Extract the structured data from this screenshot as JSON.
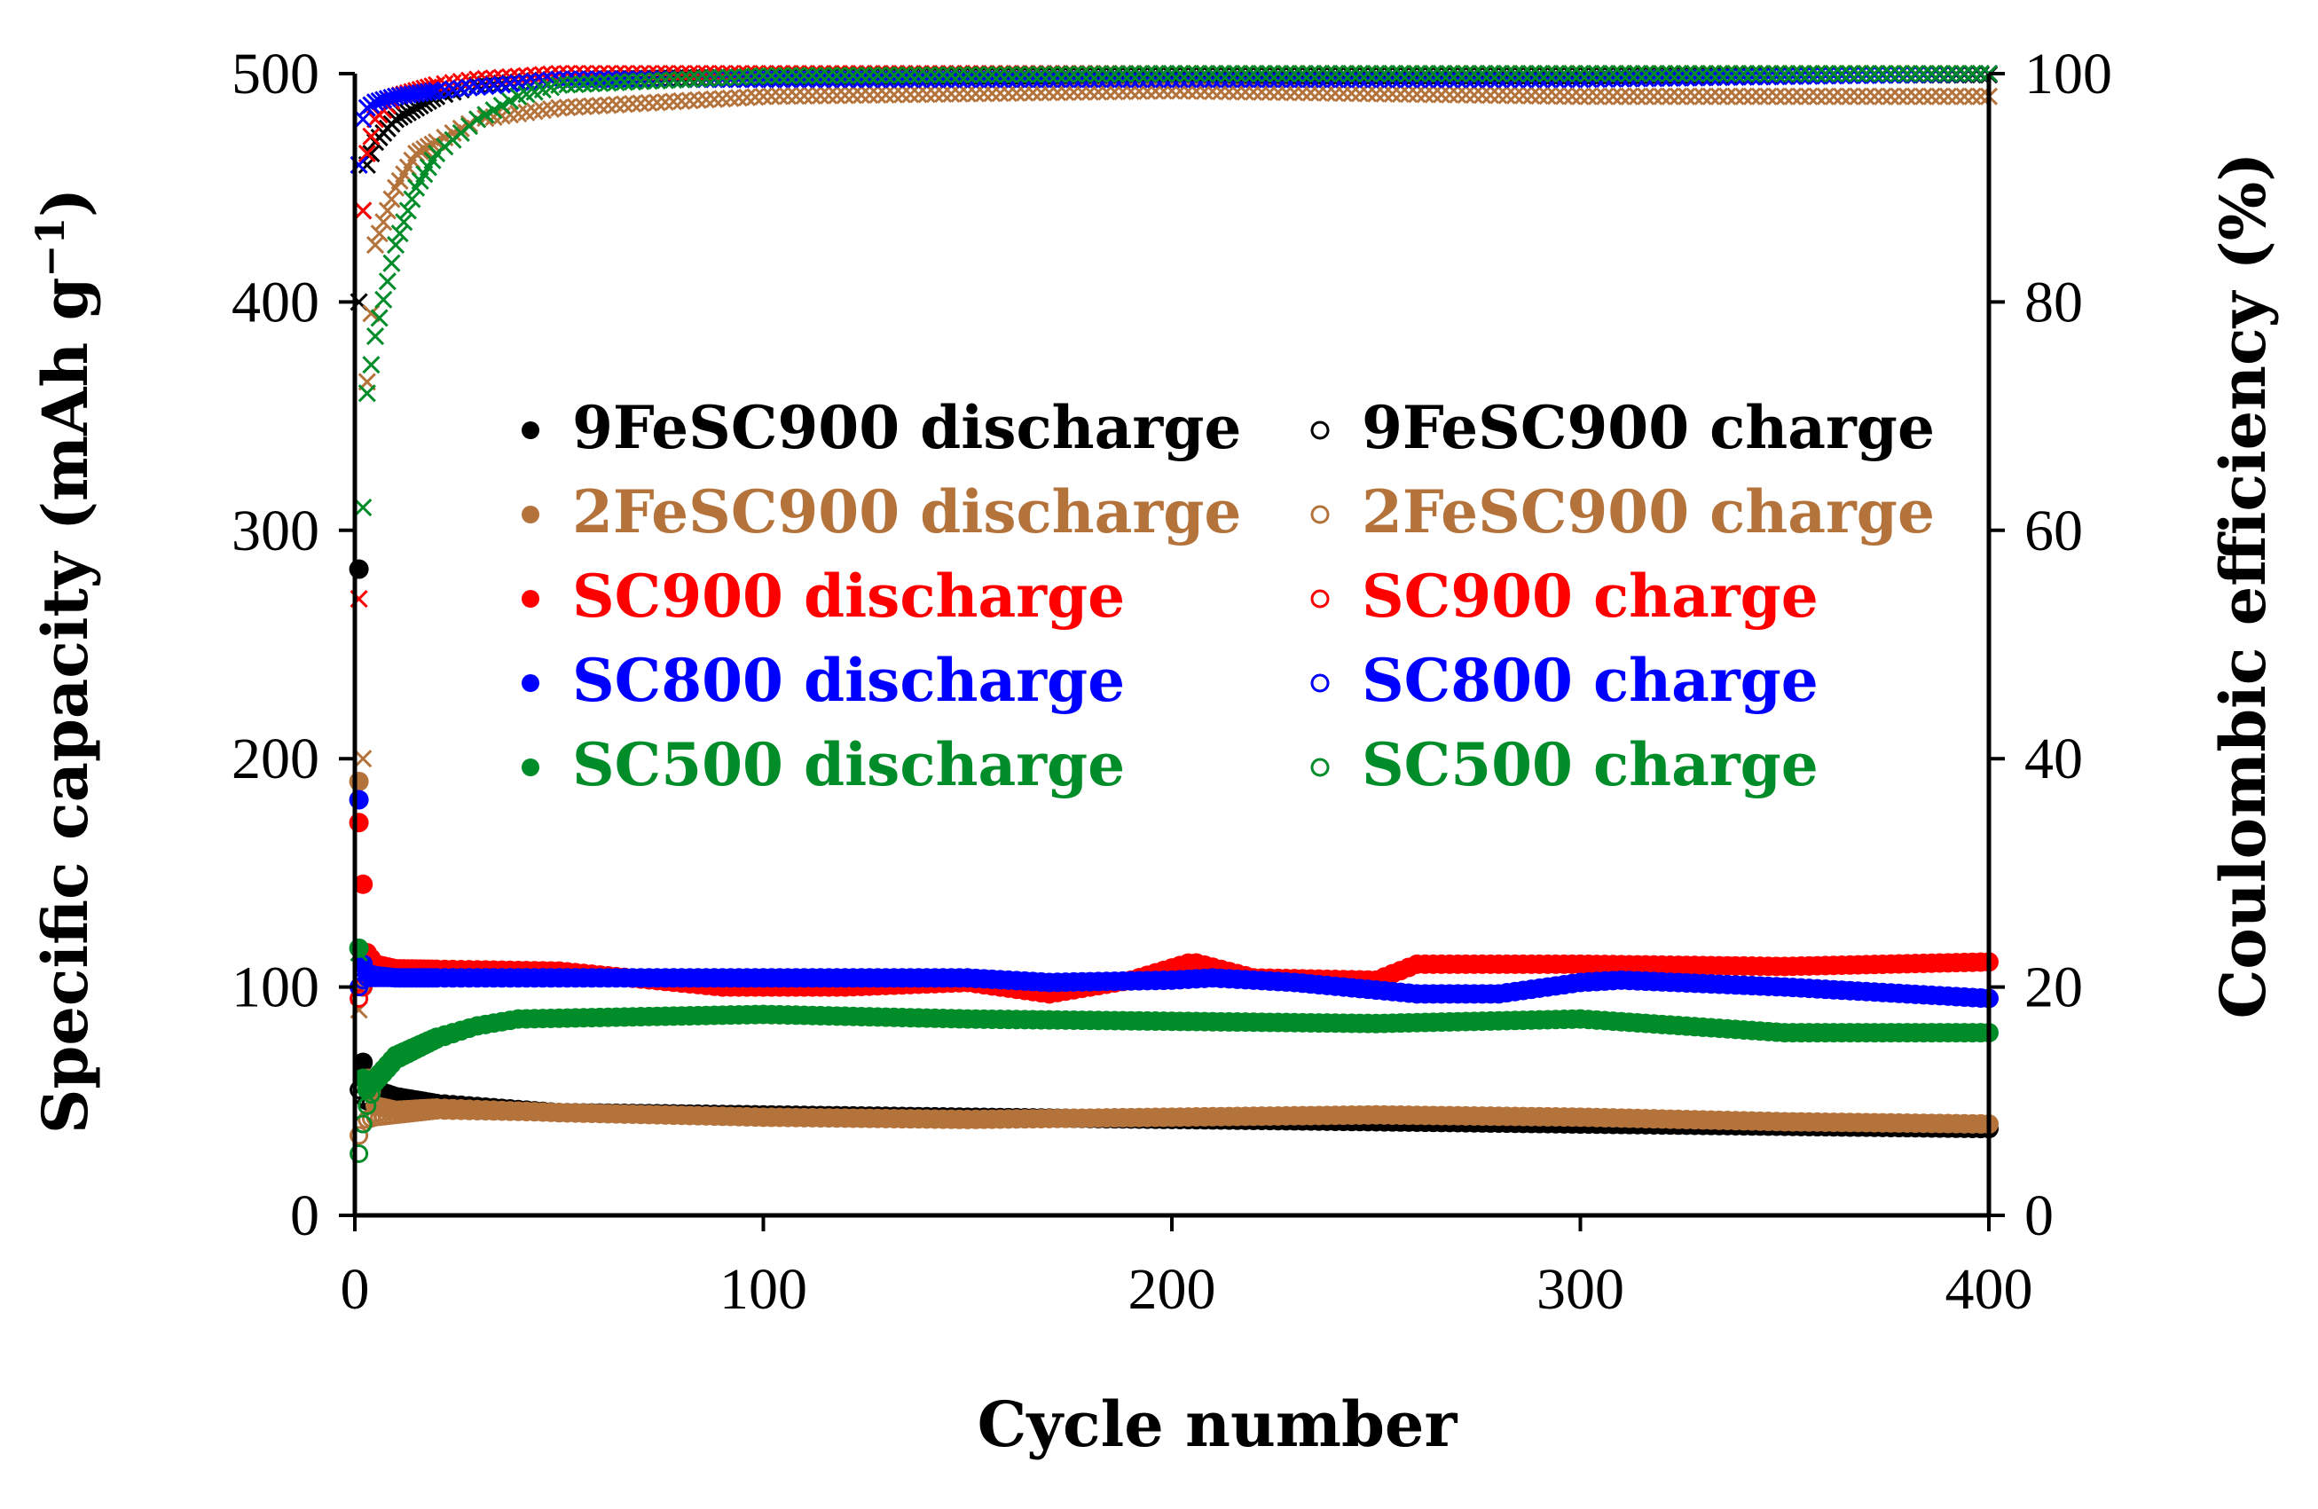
{
  "chart_data": {
    "type": "scatter",
    "title": "",
    "xlabel": "Cycle number",
    "ylabel_left": "Specific capacity (mAh g",
    "ylabel_left_sup": "−1",
    "ylabel_left_close": ")",
    "ylabel_right": "Coulombic efficiency (%)",
    "xlim": [
      0,
      400
    ],
    "ylim_left": [
      0,
      500
    ],
    "ylim_right": [
      0,
      100
    ],
    "x_ticks": [
      "0",
      "100",
      "200",
      "300",
      "400"
    ],
    "y_left_ticks": [
      "0",
      "100",
      "200",
      "300",
      "400",
      "500"
    ],
    "y_right_ticks": [
      "0",
      "20",
      "40",
      "60",
      "80",
      "100"
    ],
    "grid": false,
    "legend_position": "center-left",
    "series": [
      {
        "name": "9FeSC900",
        "color": "#000000",
        "discharge_label": "9FeSC900 discharge",
        "charge_label": "9FeSC900 charge",
        "discharge": [
          [
            1,
            283
          ],
          [
            2,
            67
          ],
          [
            3,
            60
          ],
          [
            5,
            55
          ],
          [
            10,
            52
          ],
          [
            20,
            49
          ],
          [
            50,
            45
          ],
          [
            100,
            44
          ],
          [
            150,
            43
          ],
          [
            200,
            42
          ],
          [
            250,
            41
          ],
          [
            300,
            40
          ],
          [
            350,
            39
          ],
          [
            400,
            38
          ]
        ],
        "charge": [
          [
            1,
            55
          ],
          [
            2,
            52
          ],
          [
            3,
            50
          ],
          [
            5,
            49
          ],
          [
            10,
            48
          ],
          [
            20,
            47
          ],
          [
            50,
            45
          ],
          [
            100,
            44
          ],
          [
            150,
            43
          ],
          [
            200,
            42
          ],
          [
            250,
            41
          ],
          [
            300,
            40
          ],
          [
            350,
            39
          ],
          [
            400,
            38
          ]
        ],
        "efficiency": [
          [
            1,
            80
          ],
          [
            2,
            88
          ],
          [
            3,
            92
          ],
          [
            5,
            94
          ],
          [
            10,
            96
          ],
          [
            15,
            97
          ],
          [
            20,
            98
          ],
          [
            30,
            99
          ],
          [
            50,
            99.5
          ],
          [
            100,
            99.7
          ],
          [
            200,
            99.8
          ],
          [
            300,
            99.8
          ],
          [
            400,
            99.9
          ]
        ]
      },
      {
        "name": "2FeSC900",
        "color": "#b5733c",
        "discharge_label": "2FeSC900 discharge",
        "charge_label": "2FeSC900 charge",
        "discharge": [
          [
            1,
            190
          ],
          [
            2,
            100
          ],
          [
            3,
            60
          ],
          [
            5,
            48
          ],
          [
            10,
            46
          ],
          [
            20,
            47
          ],
          [
            50,
            45
          ],
          [
            100,
            43
          ],
          [
            150,
            42
          ],
          [
            200,
            43
          ],
          [
            250,
            44
          ],
          [
            300,
            43
          ],
          [
            350,
            41
          ],
          [
            400,
            40
          ]
        ],
        "charge": [
          [
            1,
            35
          ],
          [
            2,
            40
          ],
          [
            3,
            42
          ],
          [
            5,
            43
          ],
          [
            10,
            44
          ],
          [
            20,
            46
          ],
          [
            50,
            45
          ],
          [
            100,
            43
          ],
          [
            150,
            42
          ],
          [
            200,
            43
          ],
          [
            250,
            44
          ],
          [
            300,
            43
          ],
          [
            350,
            41
          ],
          [
            400,
            40
          ]
        ],
        "efficiency": [
          [
            1,
            18
          ],
          [
            2,
            40
          ],
          [
            3,
            73
          ],
          [
            5,
            85
          ],
          [
            10,
            90
          ],
          [
            15,
            93
          ],
          [
            20,
            94
          ],
          [
            30,
            96
          ],
          [
            50,
            97
          ],
          [
            100,
            98
          ],
          [
            200,
            98.5
          ],
          [
            300,
            98
          ],
          [
            400,
            98
          ]
        ]
      },
      {
        "name": "SC900",
        "color": "#ff0000",
        "discharge_label": "SC900 discharge",
        "charge_label": "SC900 charge",
        "discharge": [
          [
            1,
            172
          ],
          [
            2,
            145
          ],
          [
            3,
            115
          ],
          [
            5,
            110
          ],
          [
            10,
            108
          ],
          [
            50,
            107
          ],
          [
            90,
            100
          ],
          [
            120,
            100
          ],
          [
            150,
            102
          ],
          [
            170,
            97
          ],
          [
            190,
            103
          ],
          [
            205,
            111
          ],
          [
            220,
            104
          ],
          [
            250,
            103
          ],
          [
            260,
            110
          ],
          [
            300,
            110
          ],
          [
            350,
            109
          ],
          [
            400,
            111
          ]
        ],
        "charge": [
          [
            1,
            95
          ],
          [
            2,
            100
          ],
          [
            3,
            105
          ],
          [
            5,
            106
          ],
          [
            10,
            107
          ],
          [
            50,
            107
          ],
          [
            90,
            100
          ],
          [
            120,
            100
          ],
          [
            150,
            102
          ],
          [
            170,
            97
          ],
          [
            190,
            103
          ],
          [
            205,
            111
          ],
          [
            220,
            104
          ],
          [
            250,
            103
          ],
          [
            260,
            110
          ],
          [
            300,
            110
          ],
          [
            350,
            109
          ],
          [
            400,
            111
          ]
        ],
        "efficiency": [
          [
            1,
            54
          ],
          [
            2,
            88
          ],
          [
            3,
            93
          ],
          [
            5,
            96
          ],
          [
            10,
            98
          ],
          [
            20,
            99
          ],
          [
            30,
            99.5
          ],
          [
            50,
            100
          ],
          [
            100,
            100
          ],
          [
            200,
            100
          ],
          [
            300,
            100
          ],
          [
            400,
            100
          ]
        ]
      },
      {
        "name": "SC800",
        "color": "#0000ff",
        "discharge_label": "SC800 discharge",
        "charge_label": "SC800 charge",
        "discharge": [
          [
            1,
            182
          ],
          [
            2,
            110
          ],
          [
            3,
            106
          ],
          [
            5,
            105
          ],
          [
            10,
            104
          ],
          [
            50,
            104
          ],
          [
            100,
            104
          ],
          [
            150,
            104
          ],
          [
            170,
            102
          ],
          [
            200,
            103
          ],
          [
            210,
            104
          ],
          [
            230,
            102
          ],
          [
            260,
            97
          ],
          [
            280,
            97
          ],
          [
            300,
            102
          ],
          [
            310,
            103
          ],
          [
            350,
            100
          ],
          [
            400,
            95
          ]
        ],
        "charge": [
          [
            1,
            100
          ],
          [
            2,
            103
          ],
          [
            3,
            104
          ],
          [
            5,
            104
          ],
          [
            10,
            104
          ],
          [
            50,
            104
          ],
          [
            100,
            104
          ],
          [
            150,
            104
          ],
          [
            170,
            102
          ],
          [
            200,
            103
          ],
          [
            210,
            104
          ],
          [
            230,
            102
          ],
          [
            260,
            97
          ],
          [
            280,
            97
          ],
          [
            300,
            102
          ],
          [
            310,
            103
          ],
          [
            350,
            100
          ],
          [
            400,
            95
          ]
        ],
        "efficiency": [
          [
            1,
            92
          ],
          [
            2,
            96
          ],
          [
            3,
            97
          ],
          [
            5,
            97.5
          ],
          [
            10,
            98
          ],
          [
            20,
            98.5
          ],
          [
            50,
            99.5
          ],
          [
            100,
            99.5
          ],
          [
            200,
            99.5
          ],
          [
            300,
            99.5
          ],
          [
            400,
            100
          ]
        ]
      },
      {
        "name": "SC500",
        "color": "#008c28",
        "discharge_label": "SC500 discharge",
        "charge_label": "SC500 charge",
        "discharge": [
          [
            1,
            117
          ],
          [
            2,
            60
          ],
          [
            3,
            55
          ],
          [
            5,
            60
          ],
          [
            10,
            70
          ],
          [
            20,
            78
          ],
          [
            30,
            83
          ],
          [
            40,
            86
          ],
          [
            100,
            88
          ],
          [
            150,
            86
          ],
          [
            200,
            85
          ],
          [
            250,
            84
          ],
          [
            300,
            86
          ],
          [
            350,
            80
          ],
          [
            400,
            80
          ]
        ],
        "charge": [
          [
            1,
            27
          ],
          [
            2,
            40
          ],
          [
            3,
            48
          ],
          [
            5,
            58
          ],
          [
            10,
            68
          ],
          [
            20,
            77
          ],
          [
            30,
            83
          ],
          [
            40,
            86
          ],
          [
            100,
            88
          ],
          [
            150,
            86
          ],
          [
            200,
            85
          ],
          [
            250,
            84
          ],
          [
            300,
            86
          ],
          [
            350,
            80
          ],
          [
            400,
            80
          ]
        ],
        "efficiency": [
          [
            1,
            23
          ],
          [
            2,
            62
          ],
          [
            3,
            72
          ],
          [
            5,
            77
          ],
          [
            10,
            85
          ],
          [
            15,
            90
          ],
          [
            20,
            93
          ],
          [
            30,
            96
          ],
          [
            40,
            98
          ],
          [
            50,
            99
          ],
          [
            100,
            99.8
          ],
          [
            200,
            100
          ],
          [
            300,
            100
          ],
          [
            400,
            100
          ]
        ]
      }
    ]
  }
}
